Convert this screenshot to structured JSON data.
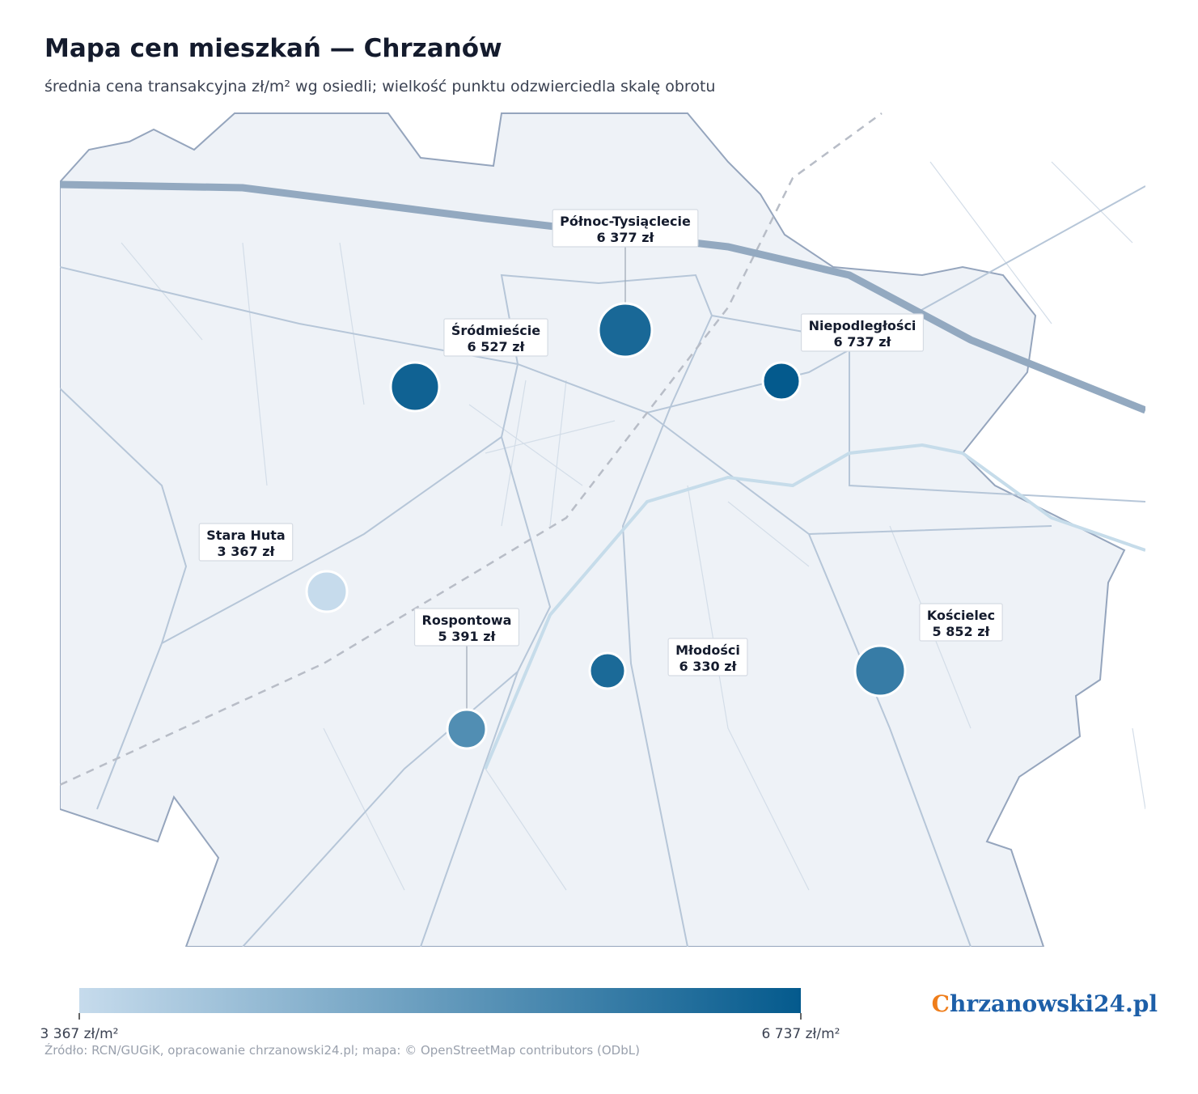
{
  "title": "Mapa cen mieszkań — Chrzanów",
  "subtitle": "średnia cena transakcyjna zł/m² wg osiedli; wielkość punktu odzwierciedla skalę obrotu",
  "districts": [
    {
      "name": "Północ-Tysiąclecie",
      "value": 6377,
      "value_label": "6 377 zł"
    },
    {
      "name": "Śródmieście",
      "value": 6527,
      "value_label": "6 527 zł"
    },
    {
      "name": "Niepodległości",
      "value": 6737,
      "value_label": "6 737 zł"
    },
    {
      "name": "Stara Huta",
      "value": 3367,
      "value_label": "3 367 zł"
    },
    {
      "name": "Rospontowa",
      "value": 5391,
      "value_label": "5 391 zł"
    },
    {
      "name": "Młodości",
      "value": 6330,
      "value_label": "6 330 zł"
    },
    {
      "name": "Kościelec",
      "value": 5852,
      "value_label": "5 852 zł"
    }
  ],
  "colorbar": {
    "colors": [
      "#c6dbec",
      "#045a8d"
    ],
    "ticks": [
      {
        "value": 3367,
        "label": "3 367 zł/m²"
      },
      {
        "value": 6737,
        "label": "6 737 zł/m²"
      }
    ]
  },
  "source": "Źródło: RCN/GUGiK, opracowanie chrzanowski24.pl; mapa: © OpenStreetMap contributors (ODbL)",
  "logo": "Chrzanowski24.pl"
}
